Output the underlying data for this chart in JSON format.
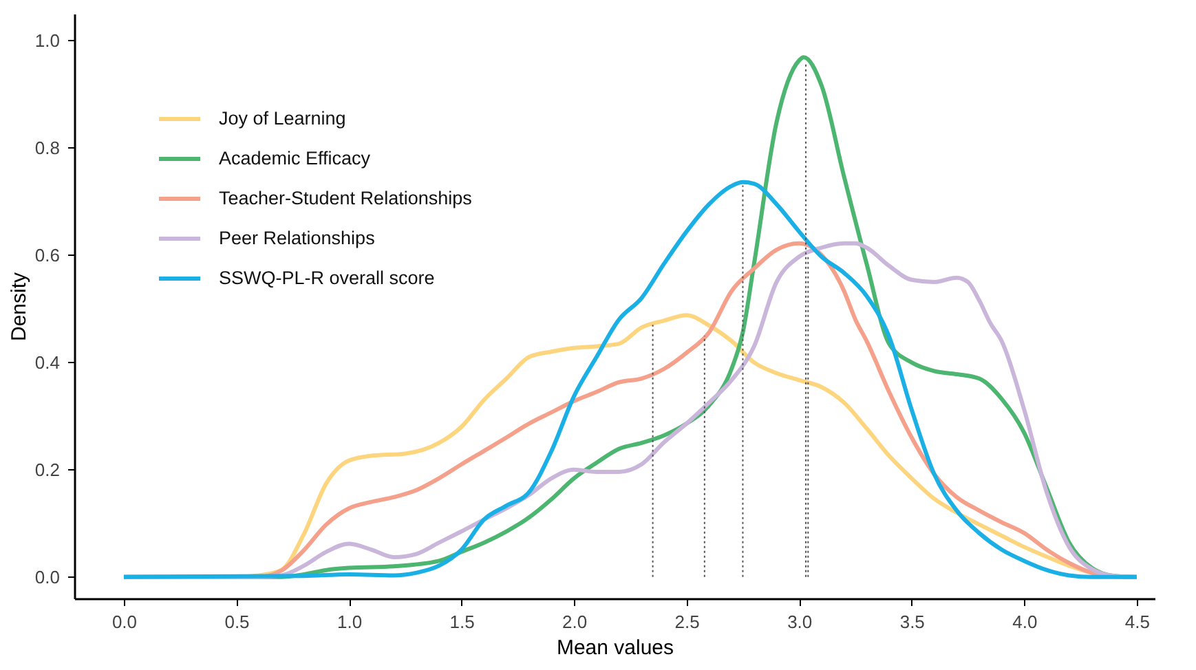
{
  "chart_data": {
    "type": "line",
    "xlabel": "Mean values",
    "ylabel": "Density",
    "legend": "top left",
    "xlim": [
      -0.22,
      4.58
    ],
    "ylim": [
      -0.04,
      1.05
    ],
    "xticks": [
      {
        "value": 0,
        "label": "0.0"
      },
      0.5,
      {
        "value": 1,
        "label": "1.0"
      },
      1.5,
      {
        "value": 2,
        "label": "2.0"
      },
      2.5,
      {
        "value": 3,
        "label": "3.0"
      },
      3.5,
      {
        "value": 4,
        "label": "4.0"
      },
      4.5
    ],
    "yticks": [
      {
        "value": 0,
        "label": "0.0"
      },
      0.2,
      0.4,
      0.6,
      0.8,
      {
        "value": 1,
        "label": "1.0"
      }
    ],
    "series": [
      {
        "name": "Joy of Learning",
        "color": "#fdd57e",
        "x": [
          0,
          0.5,
          0.6,
          0.7,
          0.8,
          0.9,
          1.0,
          1.1,
          1.25,
          1.4,
          1.5,
          1.6,
          1.7,
          1.8,
          1.9,
          2.0,
          2.1,
          2.2,
          2.3,
          2.4,
          2.5,
          2.6,
          2.7,
          2.8,
          2.9,
          3.0,
          3.1,
          3.2,
          3.3,
          3.4,
          3.5,
          3.6,
          3.7,
          3.8,
          3.9,
          4.0,
          4.1,
          4.2,
          4.3,
          4.4,
          4.5
        ],
        "values": [
          0,
          0,
          0.003,
          0.013,
          0.08,
          0.175,
          0.217,
          0.226,
          0.23,
          0.25,
          0.28,
          0.33,
          0.37,
          0.41,
          0.42,
          0.427,
          0.43,
          0.435,
          0.465,
          0.478,
          0.488,
          0.469,
          0.44,
          0.4,
          0.38,
          0.367,
          0.354,
          0.325,
          0.277,
          0.226,
          0.184,
          0.146,
          0.12,
          0.098,
          0.077,
          0.056,
          0.038,
          0.021,
          0.008,
          0.001,
          0
        ]
      },
      {
        "name": "Academic Efficacy",
        "color": "#4cb56f",
        "x": [
          0,
          0.7,
          0.8,
          0.9,
          1.0,
          1.2,
          1.4,
          1.5,
          1.6,
          1.7,
          1.8,
          1.9,
          2.0,
          2.1,
          2.2,
          2.3,
          2.4,
          2.5,
          2.6,
          2.7,
          2.75,
          2.8,
          2.9,
          3.0,
          3.02,
          3.1,
          3.2,
          3.3,
          3.4,
          3.5,
          3.6,
          3.7,
          3.8,
          3.9,
          4.0,
          4.1,
          4.2,
          4.3,
          4.4,
          4.5
        ],
        "values": [
          0,
          0,
          0.005,
          0.013,
          0.017,
          0.02,
          0.03,
          0.047,
          0.064,
          0.085,
          0.111,
          0.145,
          0.184,
          0.213,
          0.239,
          0.25,
          0.264,
          0.286,
          0.32,
          0.388,
          0.456,
          0.584,
          0.848,
          0.963,
          0.969,
          0.916,
          0.746,
          0.584,
          0.435,
          0.4,
          0.384,
          0.378,
          0.37,
          0.332,
          0.269,
          0.166,
          0.064,
          0.017,
          0.002,
          0
        ]
      },
      {
        "name": "Teacher-Student Relationships",
        "color": "#f4a08a",
        "x": [
          0,
          0.6,
          0.7,
          0.8,
          0.9,
          1.0,
          1.1,
          1.2,
          1.3,
          1.4,
          1.5,
          1.6,
          1.7,
          1.8,
          1.9,
          2.0,
          2.1,
          2.2,
          2.3,
          2.4,
          2.5,
          2.6,
          2.7,
          2.8,
          2.9,
          3.0,
          3.1,
          3.2,
          3.25,
          3.3,
          3.4,
          3.5,
          3.6,
          3.7,
          3.8,
          3.9,
          4.0,
          4.1,
          4.2,
          4.3,
          4.4,
          4.5
        ],
        "values": [
          0,
          0,
          0.012,
          0.05,
          0.098,
          0.128,
          0.14,
          0.149,
          0.162,
          0.184,
          0.21,
          0.235,
          0.26,
          0.286,
          0.307,
          0.328,
          0.345,
          0.363,
          0.37,
          0.388,
          0.418,
          0.456,
          0.533,
          0.575,
          0.61,
          0.622,
          0.6,
          0.533,
          0.48,
          0.44,
          0.345,
          0.26,
          0.192,
          0.149,
          0.124,
          0.102,
          0.082,
          0.051,
          0.026,
          0.008,
          0.001,
          0
        ]
      },
      {
        "name": "Peer Relationships",
        "color": "#c9b6da",
        "x": [
          0,
          0.6,
          0.7,
          0.8,
          0.9,
          1.0,
          1.1,
          1.2,
          1.3,
          1.4,
          1.5,
          1.6,
          1.7,
          1.8,
          1.9,
          2.0,
          2.1,
          2.2,
          2.3,
          2.4,
          2.5,
          2.6,
          2.7,
          2.8,
          2.9,
          3.0,
          3.1,
          3.2,
          3.25,
          3.3,
          3.4,
          3.5,
          3.6,
          3.7,
          3.75,
          3.8,
          3.85,
          3.9,
          4.0,
          4.1,
          4.2,
          4.3,
          4.4,
          4.5
        ],
        "values": [
          0,
          0,
          0.003,
          0.021,
          0.047,
          0.062,
          0.051,
          0.037,
          0.043,
          0.064,
          0.085,
          0.107,
          0.128,
          0.153,
          0.184,
          0.2,
          0.196,
          0.196,
          0.21,
          0.251,
          0.286,
          0.325,
          0.367,
          0.43,
          0.55,
          0.597,
          0.614,
          0.622,
          0.622,
          0.614,
          0.58,
          0.554,
          0.55,
          0.558,
          0.55,
          0.516,
          0.473,
          0.44,
          0.312,
          0.158,
          0.056,
          0.015,
          0.002,
          0
        ]
      },
      {
        "name": "SSWQ-PL-R overall score",
        "color": "#1ab0e6",
        "x": [
          0,
          0.8,
          1.0,
          1.2,
          1.3,
          1.4,
          1.5,
          1.6,
          1.7,
          1.8,
          1.9,
          2.0,
          2.1,
          2.2,
          2.3,
          2.4,
          2.5,
          2.6,
          2.7,
          2.75,
          2.8,
          2.9,
          3.0,
          3.1,
          3.2,
          3.3,
          3.4,
          3.5,
          3.6,
          3.7,
          3.8,
          3.9,
          4.0,
          4.1,
          4.2,
          4.3,
          4.5
        ],
        "values": [
          0,
          0.002,
          0.005,
          0.003,
          0.008,
          0.021,
          0.051,
          0.107,
          0.133,
          0.158,
          0.235,
          0.337,
          0.41,
          0.48,
          0.52,
          0.584,
          0.644,
          0.695,
          0.729,
          0.736,
          0.733,
          0.695,
          0.644,
          0.597,
          0.567,
          0.524,
          0.448,
          0.312,
          0.192,
          0.124,
          0.082,
          0.051,
          0.03,
          0.013,
          0.003,
          0,
          0
        ]
      },
      {
        "color": "#555555",
        "line_style": "dotted",
        "x": [
          2.35,
          2.35
        ],
        "values": [
          0,
          0.47
        ]
      },
      {
        "color": "#555555",
        "line_style": "dotted",
        "x": [
          2.58,
          2.58
        ],
        "values": [
          0,
          0.45
        ]
      },
      {
        "color": "#555555",
        "line_style": "dotted",
        "x": [
          2.75,
          2.75
        ],
        "values": [
          0,
          0.73
        ]
      },
      {
        "color": "#555555",
        "line_style": "dotted",
        "x": [
          3.03,
          3.03
        ],
        "values": [
          0,
          0.96
        ]
      },
      {
        "color": "#555555",
        "line_style": "dotted",
        "x": [
          3.04,
          3.04
        ],
        "values": [
          0,
          0.6
        ]
      }
    ]
  }
}
